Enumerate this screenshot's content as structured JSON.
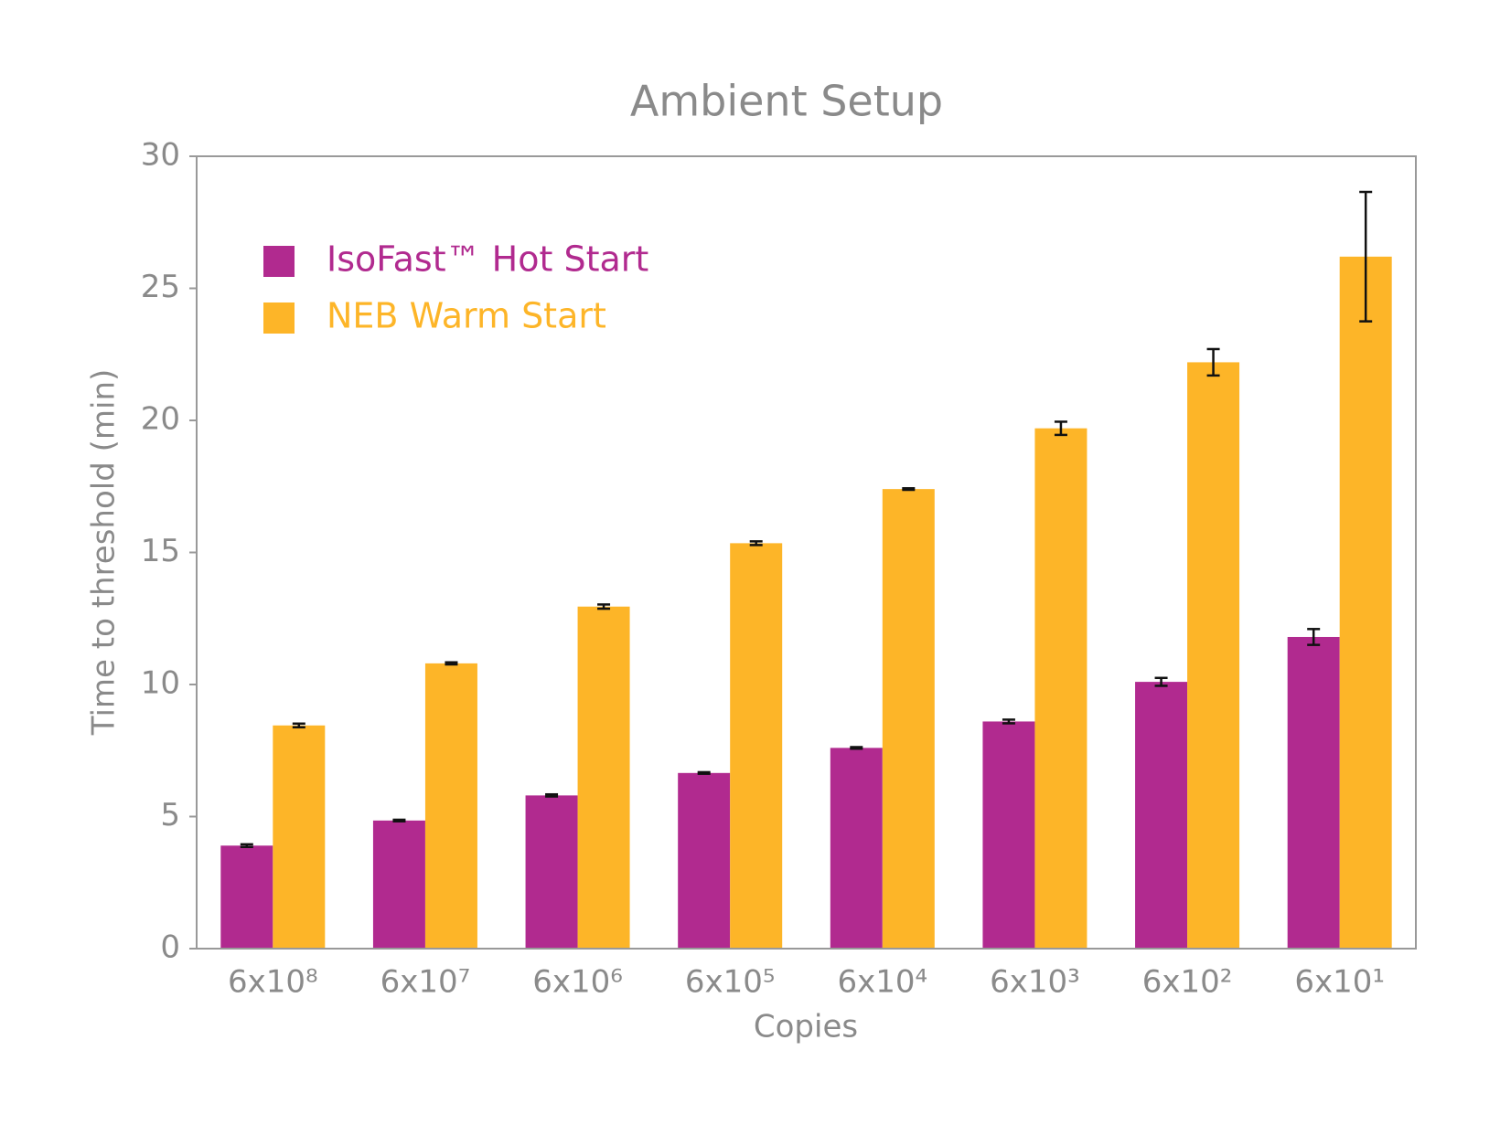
{
  "chart_data": {
    "type": "bar",
    "title": "Ambient Setup",
    "x_label": "Copies",
    "y_label": "Time to threshold (min)",
    "categories": [
      "6x10⁸",
      "6x10⁷",
      "6x10⁶",
      "6x10⁵",
      "6x10⁴",
      "6x10³",
      "6x10²",
      "6x10¹"
    ],
    "series": [
      {
        "name": "IsoFast™ Hot Start",
        "color": "#b12a8f",
        "values": [
          3.9,
          4.85,
          5.8,
          6.65,
          7.6,
          8.6,
          10.1,
          11.8
        ],
        "errors": [
          0.05,
          0.03,
          0.04,
          0.03,
          0.03,
          0.07,
          0.15,
          0.3
        ]
      },
      {
        "name": "NEB Warm Start",
        "color": "#fdb528",
        "values": [
          8.45,
          10.8,
          12.95,
          15.35,
          17.4,
          19.7,
          22.2,
          26.2
        ],
        "errors": [
          0.07,
          0.04,
          0.08,
          0.07,
          0.03,
          0.25,
          0.5,
          2.45
        ]
      }
    ],
    "ylim": [
      0,
      30
    ],
    "yticks": [
      0,
      5,
      10,
      15,
      20,
      25,
      30
    ],
    "grid": false,
    "legend": "upper left"
  }
}
